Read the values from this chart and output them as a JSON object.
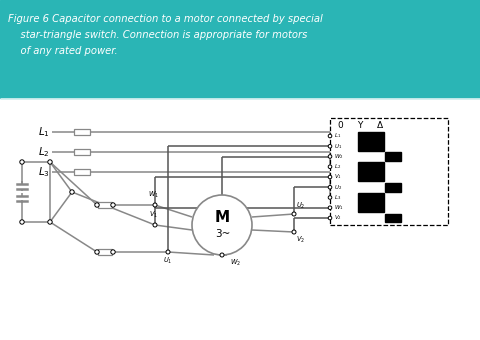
{
  "teal": "#2ab5b5",
  "white": "#ffffff",
  "black": "#000000",
  "gray": "#888888",
  "darkgray": "#555555",
  "title_lines": [
    "Figure 6 Capacitor connection to a motor connected by special",
    "    star-triangle switch. Connection is appropriate for motors",
    "    of any rated power."
  ]
}
